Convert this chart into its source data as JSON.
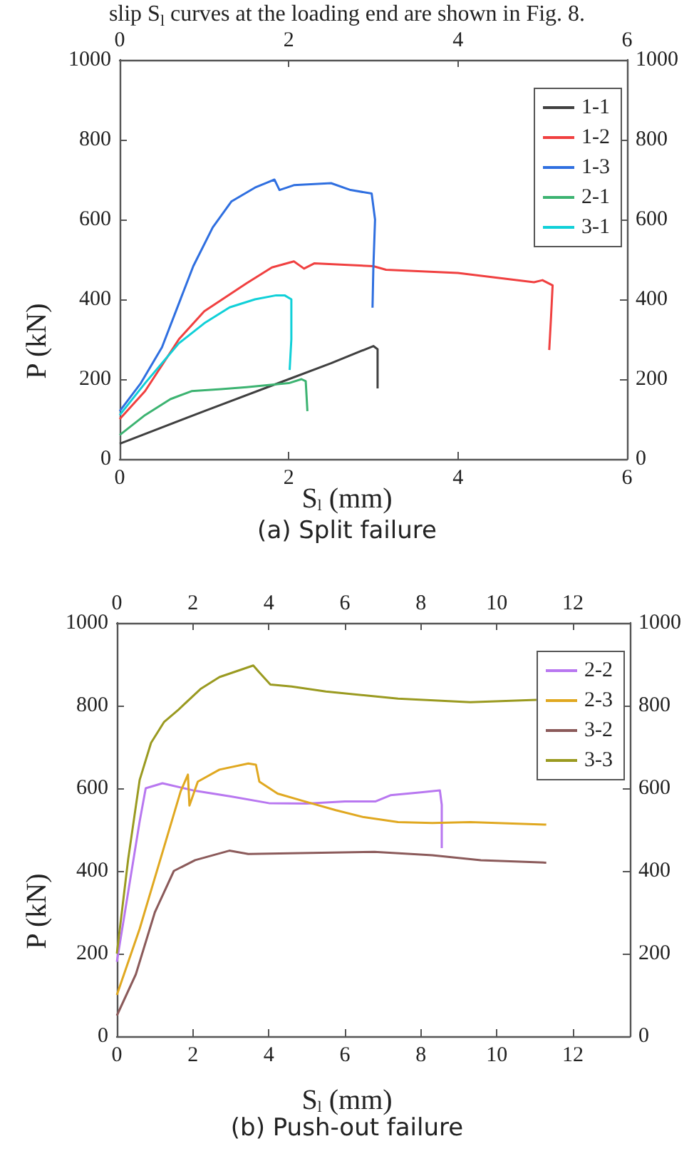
{
  "chart_data": [
    {
      "type": "line",
      "title": "(a) Split failure",
      "xlabel": "S$_{l}$ (mm)",
      "ylabel": "P (kN)",
      "annotations": [
        "slip S$_{l}$ curves at the loading end are shown in Fig. 8."
      ],
      "xlim": [
        0,
        6
      ],
      "xticks": [
        0,
        2,
        4,
        6
      ],
      "x2lim": [
        0,
        6
      ],
      "x2ticks": [
        0,
        2,
        4,
        6
      ],
      "ylim": [
        0,
        1000
      ],
      "yticks": [
        0,
        200,
        400,
        600,
        800,
        1000
      ],
      "y2lim": [
        0,
        1000
      ],
      "y2ticks": [
        0,
        200,
        400,
        600,
        800,
        1000
      ],
      "legend": "top right",
      "grid": false,
      "marker": "none",
      "line_style": "solid",
      "series": [
        {
          "name": "1-1",
          "color": "#404040",
          "x": [
            0,
            1,
            2,
            2.5,
            3,
            3.05,
            3.05
          ],
          "values": [
            38,
            120,
            200,
            240,
            283,
            275,
            177
          ]
        },
        {
          "name": "1-2",
          "color": "#f04040",
          "x": [
            0,
            0.3,
            0.7,
            1.0,
            1.5,
            1.8,
            2.06,
            2.18,
            2.3,
            3.0,
            3.15,
            4.0,
            4.9,
            5.0,
            5.12,
            5.1,
            5.08
          ],
          "values": [
            100,
            170,
            300,
            370,
            440,
            480,
            495,
            477,
            490,
            483,
            474,
            466,
            443,
            448,
            435,
            350,
            273
          ]
        },
        {
          "name": "1-3",
          "color": "#2f6fe0",
          "x": [
            0,
            0.25,
            0.5,
            0.87,
            1.1,
            1.32,
            1.6,
            1.83,
            1.89,
            2.06,
            2.5,
            2.73,
            2.98,
            3.02,
            3.0,
            2.99
          ],
          "values": [
            120,
            190,
            280,
            483,
            580,
            645,
            680,
            700,
            674,
            686,
            691,
            674,
            665,
            600,
            480,
            379
          ]
        },
        {
          "name": "2-1",
          "color": "#3cb371",
          "x": [
            0,
            0.3,
            0.6,
            0.85,
            1.2,
            1.5,
            2.0,
            2.15,
            2.2,
            2.22
          ],
          "values": [
            60,
            110,
            150,
            170,
            175,
            180,
            190,
            200,
            195,
            120
          ]
        },
        {
          "name": "3-1",
          "color": "#10d0d8",
          "x": [
            0,
            0.3,
            0.7,
            1.0,
            1.3,
            1.6,
            1.85,
            1.95,
            2.03,
            2.03,
            2.01
          ],
          "values": [
            110,
            190,
            290,
            340,
            380,
            400,
            410,
            410,
            400,
            300,
            223
          ]
        }
      ]
    },
    {
      "type": "line",
      "title": "(b) Push-out failure",
      "xlabel": "S$_{l}$ (mm)",
      "ylabel": "P (kN)",
      "xlim": [
        0,
        13.5
      ],
      "xticks": [
        0,
        2,
        4,
        6,
        8,
        10,
        12
      ],
      "x2lim": [
        0,
        13.5
      ],
      "x2ticks": [
        0,
        2,
        4,
        6,
        8,
        10,
        12
      ],
      "ylim": [
        0,
        1000
      ],
      "yticks": [
        0,
        200,
        400,
        600,
        800,
        1000
      ],
      "y2lim": [
        0,
        1000
      ],
      "y2ticks": [
        0,
        200,
        400,
        600,
        800,
        1000
      ],
      "legend": "top right",
      "grid": false,
      "marker": "none",
      "line_style": "solid",
      "series": [
        {
          "name": "2-2",
          "color": "#b877f0",
          "x": [
            0,
            0.3,
            0.6,
            0.76,
            1.2,
            2,
            3,
            4,
            5,
            6,
            6.8,
            7.2,
            8,
            8.5,
            8.55,
            8.55
          ],
          "values": [
            180,
            350,
            520,
            600,
            612,
            595,
            580,
            564,
            563,
            568,
            568,
            583,
            590,
            595,
            560,
            455
          ]
        },
        {
          "name": "2-3",
          "color": "#e0a820",
          "x": [
            0,
            0.6,
            1.68,
            1.87,
            1.91,
            2.13,
            2.7,
            3.46,
            3.66,
            3.75,
            4.23,
            4.87,
            5.76,
            6.5,
            7.4,
            8.3,
            9.3,
            11.3
          ],
          "values": [
            100,
            260,
            593,
            633,
            558,
            616,
            645,
            660,
            657,
            616,
            587,
            570,
            547,
            530,
            518,
            516,
            518,
            512
          ]
        },
        {
          "name": "3-2",
          "color": "#8b5a5a",
          "x": [
            0,
            0.5,
            1.0,
            1.5,
            2.06,
            2.96,
            3.46,
            6.78,
            8.3,
            9.58,
            11.3
          ],
          "values": [
            50,
            150,
            300,
            400,
            426,
            449,
            441,
            446,
            438,
            426,
            420
          ]
        },
        {
          "name": "3-3",
          "color": "#9a9a20",
          "x": [
            0,
            0.3,
            0.6,
            0.9,
            1.24,
            1.62,
            2.2,
            2.7,
            3.59,
            3.75,
            4.04,
            4.6,
            5.5,
            7.4,
            9.3,
            11.04
          ],
          "values": [
            200,
            430,
            620,
            710,
            760,
            790,
            840,
            869,
            897,
            880,
            851,
            846,
            834,
            817,
            808,
            814
          ]
        }
      ]
    }
  ]
}
